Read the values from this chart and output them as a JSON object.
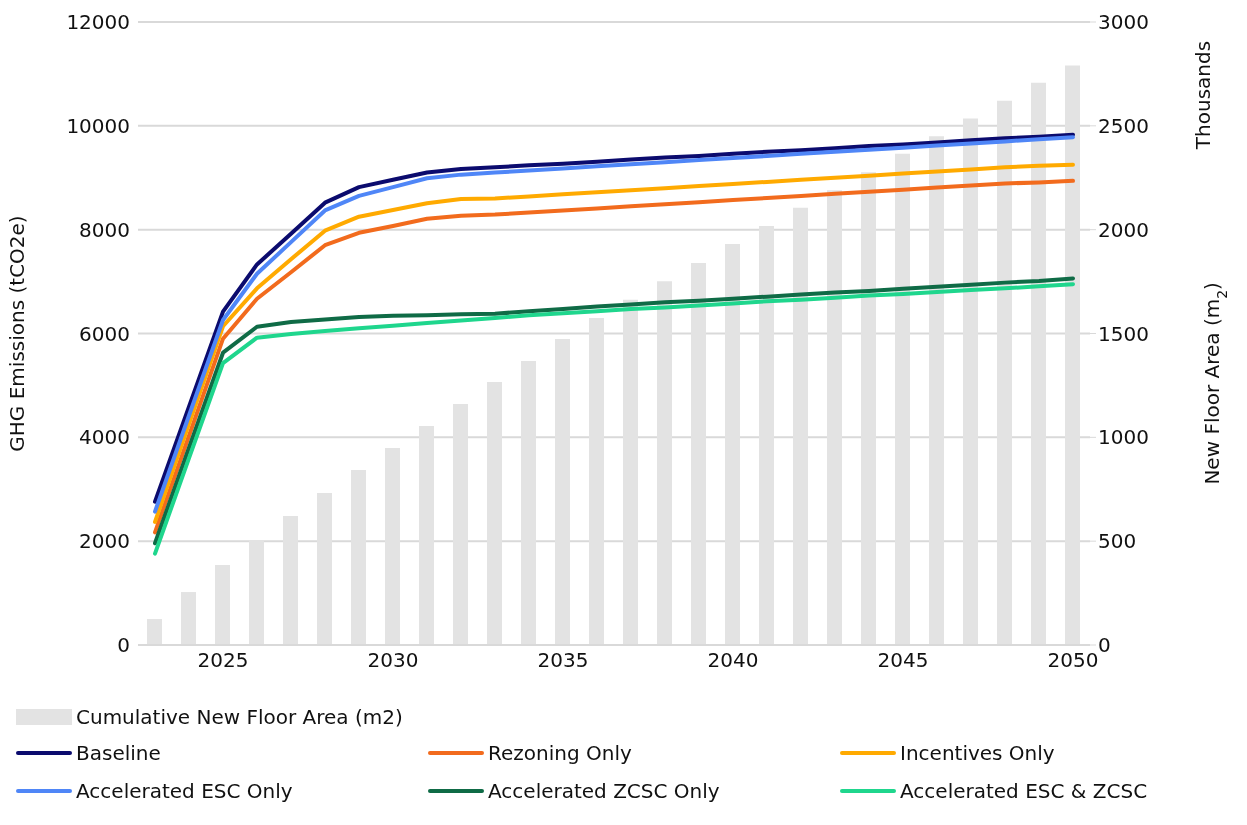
{
  "chart_data": {
    "type": "line",
    "x": [
      2023,
      2024,
      2025,
      2026,
      2027,
      2028,
      2029,
      2030,
      2031,
      2032,
      2033,
      2034,
      2035,
      2036,
      2037,
      2038,
      2039,
      2040,
      2041,
      2042,
      2043,
      2044,
      2045,
      2046,
      2047,
      2048,
      2049,
      2050
    ],
    "xlim": [
      2022.5,
      2050.5
    ],
    "xticks": [
      2025,
      2030,
      2035,
      2040,
      2045,
      2050
    ],
    "ylim": [
      0,
      12000
    ],
    "yticks": [
      0,
      2000,
      4000,
      6000,
      8000,
      10000,
      12000
    ],
    "y2lim": [
      0,
      3000
    ],
    "y2ticks": [
      0,
      500,
      1000,
      1500,
      2000,
      2500,
      3000
    ],
    "ylabel": "GHG Emissions (tCO2e)",
    "y2label": "New Floor Area (m$_{2}$)",
    "annotations": [
      "Thousands"
    ],
    "grid": "y",
    "legend": "bottom",
    "series": [
      {
        "name": "Cumulative New Floor Area (m2)",
        "type": "bar",
        "axis": "y2",
        "color": "#e3e3e3",
        "values": [
          125,
          255,
          385,
          506,
          621,
          732,
          843,
          949,
          1055,
          1161,
          1267,
          1368,
          1474,
          1575,
          1662,
          1752,
          1839,
          1931,
          2018,
          2105,
          2190,
          2277,
          2365,
          2450,
          2535,
          2621,
          2707,
          2790
        ]
      },
      {
        "name": "Baseline",
        "color": "#0b0b6e",
        "values": [
          2760,
          4590,
          6420,
          7330,
          7920,
          8520,
          8820,
          8960,
          9100,
          9170,
          9200,
          9240,
          9270,
          9310,
          9350,
          9390,
          9420,
          9460,
          9500,
          9530,
          9570,
          9610,
          9640,
          9680,
          9720,
          9760,
          9790,
          9830
        ]
      },
      {
        "name": "Rezoning Only",
        "color": "#f26b1d",
        "values": [
          2170,
          4030,
          5900,
          6670,
          7180,
          7700,
          7940,
          8070,
          8210,
          8270,
          8290,
          8330,
          8370,
          8410,
          8450,
          8490,
          8530,
          8570,
          8610,
          8650,
          8690,
          8730,
          8770,
          8810,
          8850,
          8890,
          8910,
          8940
        ]
      },
      {
        "name": "Incentives Only",
        "color": "#ffaa00",
        "values": [
          2370,
          4260,
          6140,
          6870,
          7430,
          7980,
          8250,
          8380,
          8510,
          8590,
          8600,
          8640,
          8680,
          8720,
          8760,
          8800,
          8840,
          8880,
          8920,
          8960,
          9000,
          9040,
          9080,
          9120,
          9160,
          9200,
          9230,
          9250
        ]
      },
      {
        "name": "Accelerated ESC Only",
        "color": "#4f86f7",
        "values": [
          2570,
          4420,
          6260,
          7150,
          7760,
          8370,
          8650,
          8820,
          8990,
          9060,
          9100,
          9140,
          9180,
          9220,
          9260,
          9300,
          9340,
          9380,
          9420,
          9460,
          9500,
          9540,
          9580,
          9620,
          9660,
          9700,
          9740,
          9780
        ]
      },
      {
        "name": "Accelerated ZCSC Only",
        "color": "#0f6b46",
        "values": [
          1960,
          3800,
          5630,
          6130,
          6220,
          6270,
          6320,
          6340,
          6350,
          6370,
          6380,
          6430,
          6470,
          6520,
          6560,
          6600,
          6630,
          6670,
          6710,
          6750,
          6790,
          6820,
          6860,
          6900,
          6940,
          6980,
          7010,
          7060
        ]
      },
      {
        "name": "Accelerated ESC & ZCSC",
        "color": "#1fd68d",
        "values": [
          1760,
          3600,
          5430,
          5920,
          5990,
          6050,
          6100,
          6150,
          6200,
          6250,
          6300,
          6350,
          6390,
          6430,
          6470,
          6500,
          6540,
          6580,
          6620,
          6650,
          6690,
          6730,
          6760,
          6800,
          6840,
          6870,
          6910,
          6950
        ]
      }
    ]
  }
}
